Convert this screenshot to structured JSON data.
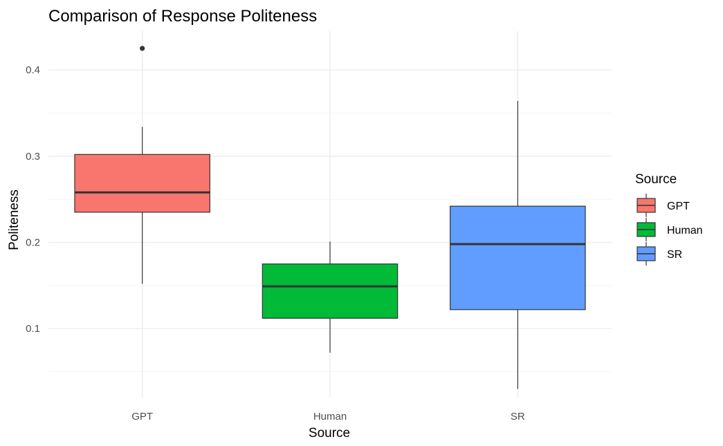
{
  "chart_data": {
    "type": "boxplot",
    "title": "Comparison of Response Politeness",
    "xlabel": "Source",
    "ylabel": "Politeness",
    "ylim": [
      0.02,
      0.445
    ],
    "yticks": [
      0.1,
      0.2,
      0.3,
      0.4
    ],
    "ytick_labels": [
      "0.1",
      "0.2",
      "0.3",
      "0.4"
    ],
    "grid": true,
    "categories": [
      "GPT",
      "Human",
      "SR"
    ],
    "series": [
      {
        "name": "GPT",
        "color": "#F8766D",
        "whisker_low": 0.152,
        "q1": 0.235,
        "median": 0.258,
        "q3": 0.302,
        "whisker_high": 0.334,
        "outliers": [
          0.425
        ]
      },
      {
        "name": "Human",
        "color": "#00BA38",
        "whisker_low": 0.072,
        "q1": 0.112,
        "median": 0.149,
        "q3": 0.175,
        "whisker_high": 0.201,
        "outliers": []
      },
      {
        "name": "SR",
        "color": "#619CFF",
        "whisker_low": 0.03,
        "q1": 0.122,
        "median": 0.198,
        "q3": 0.242,
        "whisker_high": 0.364,
        "outliers": []
      }
    ],
    "legend": {
      "title": "Source",
      "position": "right",
      "entries": [
        "GPT",
        "Human",
        "SR"
      ]
    }
  }
}
